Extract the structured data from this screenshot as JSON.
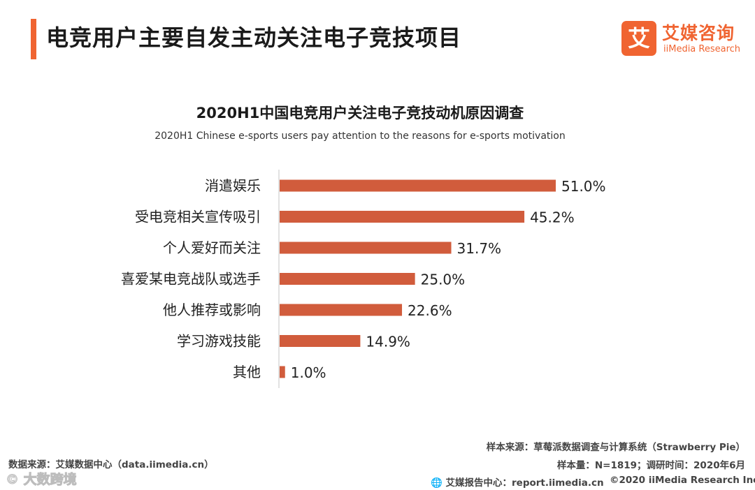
{
  "header": {
    "title": "电竞用户主要自发主动关注电子竞技项目"
  },
  "logo": {
    "mark": "艾",
    "name_cn": "艾媒咨询",
    "name_en": "iiMedia Research"
  },
  "colors": {
    "accent": "#f06431",
    "bar": "#d15c3c",
    "axis": "#d9d9d9"
  },
  "chart_data": {
    "type": "bar",
    "orientation": "horizontal",
    "title": "2020H1中国电竞用户关注电子竞技动机原因调查",
    "subtitle": "2020H1 Chinese e-sports users pay attention to the reasons for e-sports motivation",
    "categories": [
      "消遣娱乐",
      "受电竞相关宣传吸引",
      "个人爱好而关注",
      "喜爱某电竞战队或选手",
      "他人推荐或影响",
      "学习游戏技能",
      "其他"
    ],
    "values": [
      51.0,
      45.2,
      31.7,
      25.0,
      22.6,
      14.9,
      1.0
    ],
    "labels": [
      "51.0%",
      "45.2%",
      "31.7%",
      "25.0%",
      "22.6%",
      "14.9%",
      "1.0%"
    ],
    "unit": "%",
    "xlim": [
      0,
      51.0
    ],
    "grid": false,
    "legend": "none"
  },
  "footer": {
    "source_left": "数据来源：艾媒数据中心（data.iimedia.cn）",
    "sample_source": "样本来源：草莓派数据调查与计算系统（Strawberry Pie）",
    "sample_info": "样本量：N=1819；调研时间：2020年6月",
    "report_center": "艾媒报告中心：report.iimedia.cn",
    "copyright": "©2020  iiMedia Research  Inc",
    "watermark": "© 大数跨境"
  }
}
